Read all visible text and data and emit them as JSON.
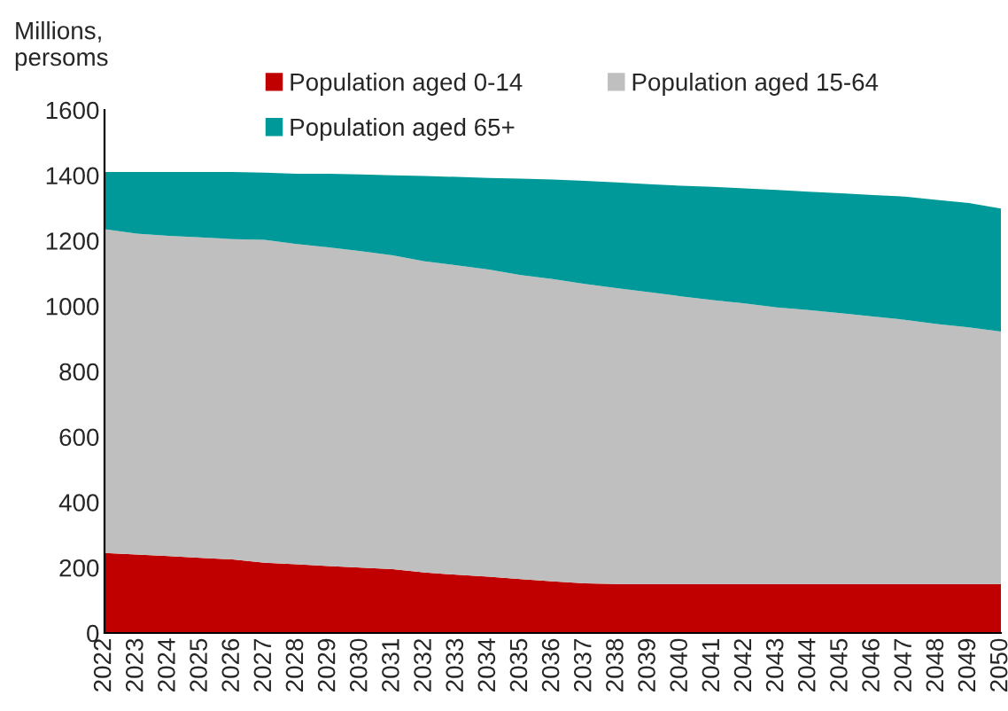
{
  "chart_data": {
    "type": "area",
    "stacked": true,
    "ylabel": "Millions,\npersoms",
    "categories": [
      "2022",
      "2023",
      "2024",
      "2025",
      "2026",
      "2027",
      "2028",
      "2029",
      "2030",
      "2031",
      "2032",
      "2033",
      "2034",
      "2035",
      "2036",
      "2037",
      "2038",
      "2039",
      "2040",
      "2041",
      "2042",
      "2043",
      "2044",
      "2045",
      "2046",
      "2047",
      "2048",
      "2049",
      "2050"
    ],
    "series": [
      {
        "name": "Population aged 0-14",
        "color": "#c00000",
        "values": [
          245,
          240,
          235,
          230,
          225,
          215,
          210,
          205,
          200,
          195,
          185,
          178,
          172,
          165,
          158,
          152,
          150,
          150,
          150,
          150,
          150,
          150,
          150,
          150,
          150,
          150,
          150,
          150,
          150
        ]
      },
      {
        "name": "Population aged 15-64",
        "color": "#bfbfbf",
        "values": [
          990,
          982,
          980,
          980,
          980,
          988,
          980,
          975,
          968,
          960,
          952,
          947,
          940,
          930,
          925,
          916,
          905,
          893,
          880,
          868,
          858,
          846,
          838,
          828,
          818,
          808,
          795,
          785,
          772
        ]
      },
      {
        "name": "Population aged 65+",
        "color": "#009999",
        "values": [
          175,
          188,
          195,
          200,
          205,
          205,
          215,
          225,
          235,
          245,
          261,
          270,
          280,
          295,
          304,
          315,
          323,
          330,
          338,
          347,
          352,
          359,
          362,
          367,
          372,
          377,
          380,
          380,
          376
        ]
      }
    ],
    "ylim": [
      0,
      1600
    ],
    "yticks": [
      0,
      200,
      400,
      600,
      800,
      1000,
      1200,
      1400,
      1600
    ],
    "grid": false,
    "legend": "top"
  }
}
